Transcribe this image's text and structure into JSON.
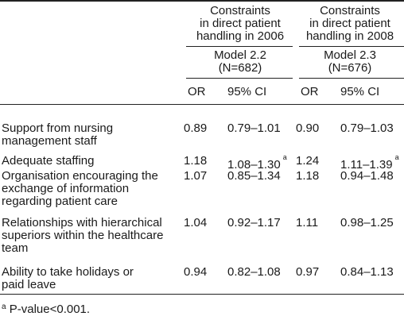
{
  "header": {
    "group1": [
      "Constraints",
      "in direct patient",
      "handling in 2006"
    ],
    "group2": [
      "Constraints",
      "in direct patient",
      "handling in 2008"
    ],
    "model1": [
      "Model 2.2",
      "(N=682)"
    ],
    "model2": [
      "Model 2.3",
      "(N=676)"
    ],
    "col_or": "OR",
    "col_ci": "95% CI"
  },
  "rows": [
    {
      "label": "Support from nursing management staff",
      "or1": "0.89",
      "ci1": "0.79–1.01",
      "note1": "",
      "or2": "0.90",
      "ci2": "0.79–1.03",
      "note2": ""
    },
    {
      "label": "Adequate staffing",
      "or1": "1.18",
      "ci1": "1.08–1.30",
      "note1": "a",
      "or2": "1.24",
      "ci2": "1.11–1.39",
      "note2": "a"
    },
    {
      "label": "Organisation encouraging the exchange of information regarding patient care",
      "or1": "1.07",
      "ci1": "0.85–1.34",
      "note1": "",
      "or2": "1.18",
      "ci2": "0.94–1.48",
      "note2": ""
    },
    {
      "label": "Relationships with hierarchical superiors within the healthcare team",
      "or1": "1.04",
      "ci1": "0.92–1.17",
      "note1": "",
      "or2": "1.11",
      "ci2": "0.98–1.25",
      "note2": ""
    },
    {
      "label": "Ability to take holidays or paid leave",
      "or1": "0.94",
      "ci1": "0.82–1.08",
      "note1": "",
      "or2": "0.97",
      "ci2": "0.84–1.13",
      "note2": ""
    }
  ],
  "footnote": {
    "mark": "a",
    "text": " P-value<0.001."
  }
}
